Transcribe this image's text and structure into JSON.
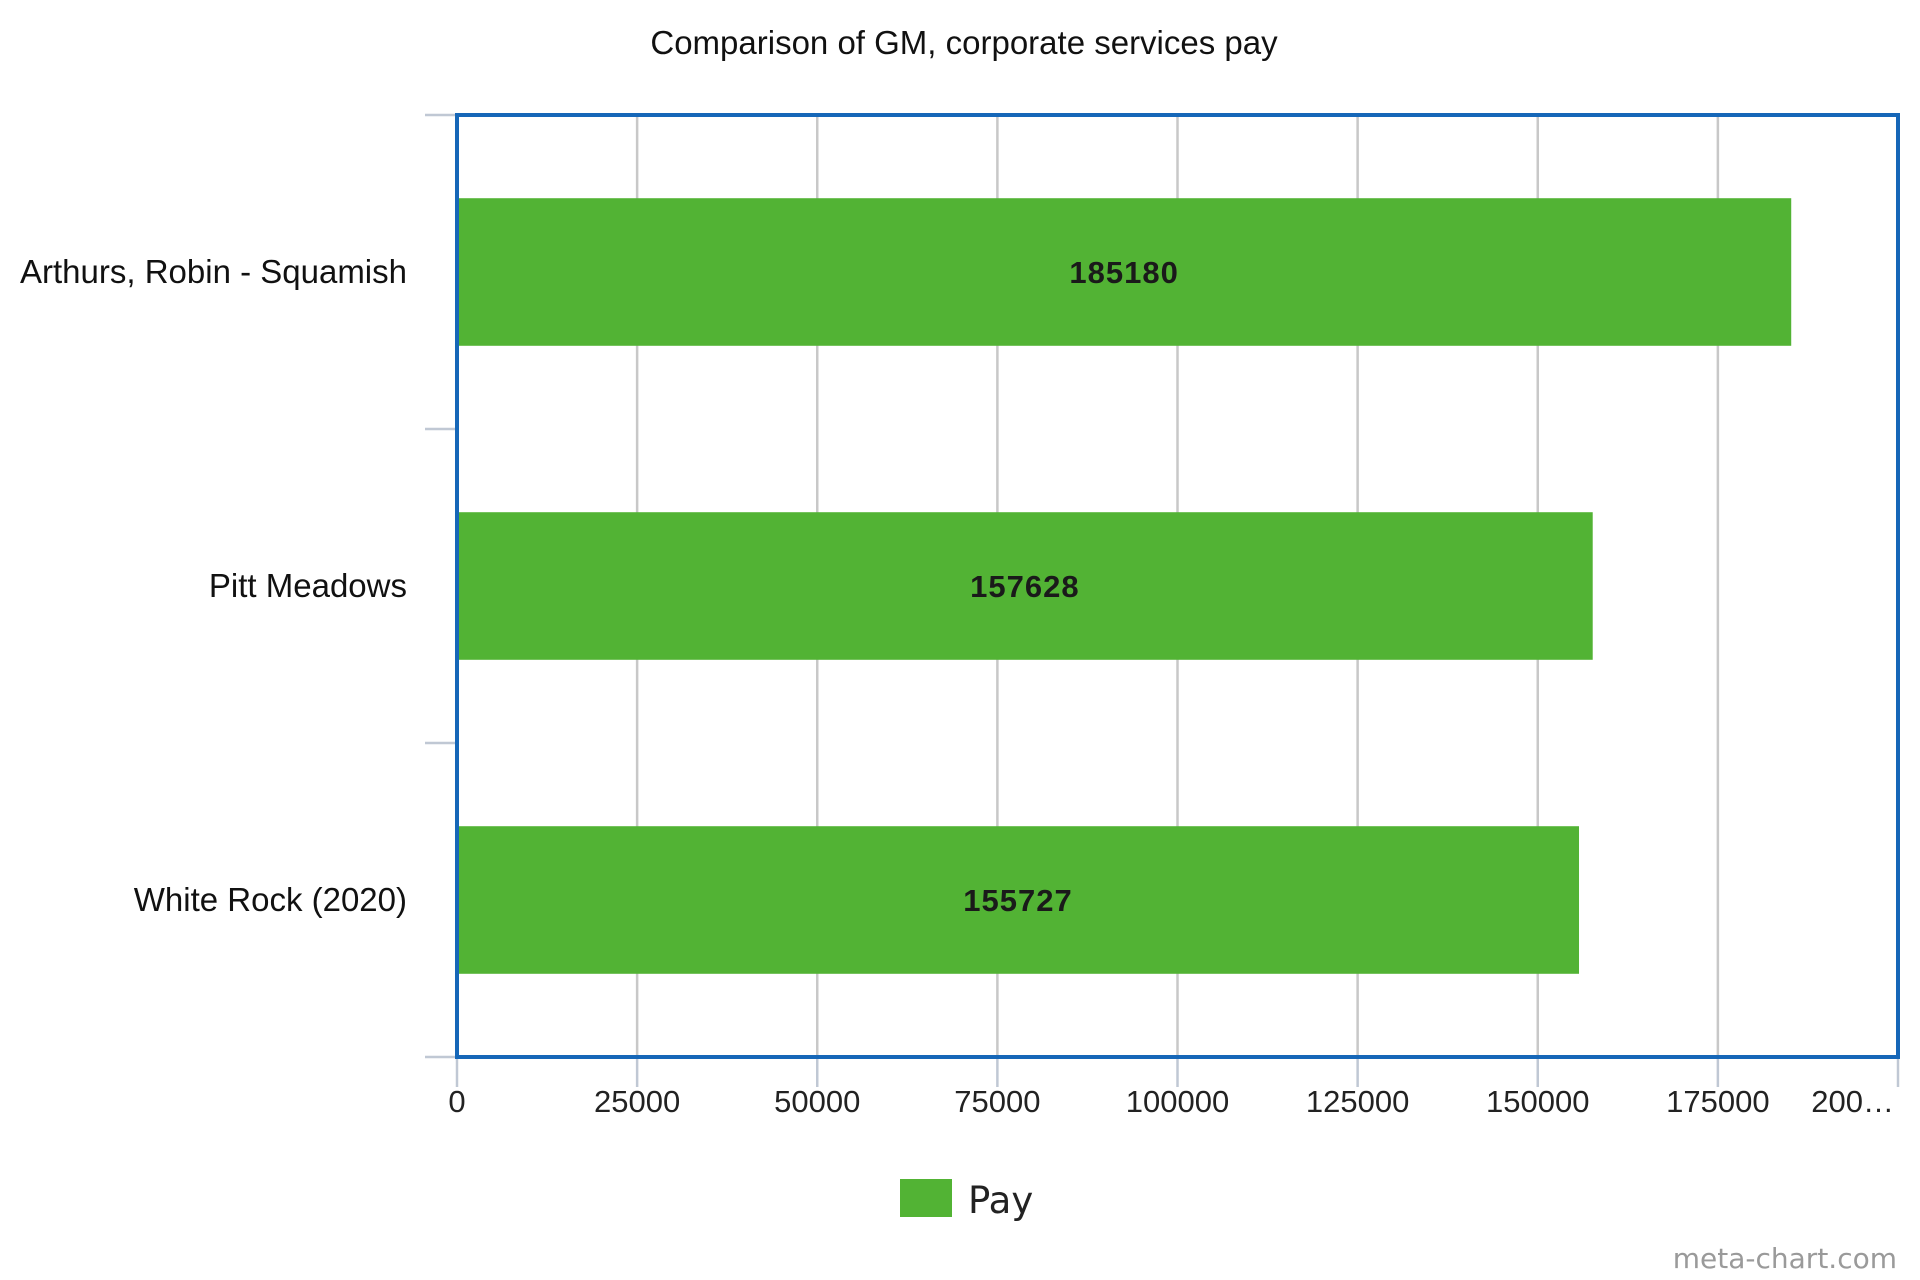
{
  "chart_data": {
    "type": "bar",
    "orientation": "horizontal",
    "title": "Comparison of GM, corporate services pay",
    "categories": [
      "Arthurs, Robin - Squamish",
      "Pitt Meadows",
      "White Rock (2020)"
    ],
    "series": [
      {
        "name": "Pay",
        "values": [
          185180,
          157628,
          155727
        ]
      }
    ],
    "data_labels": [
      "185180",
      "157628",
      "155727"
    ],
    "xlim": [
      0,
      200000
    ],
    "x_ticks": [
      "0",
      "25000",
      "50000",
      "75000",
      "100000",
      "125000",
      "150000",
      "175000",
      "200…"
    ],
    "x_tick_values": [
      0,
      25000,
      50000,
      75000,
      100000,
      125000,
      150000,
      175000,
      200000
    ],
    "grid": true,
    "legend": "bottom",
    "watermark": "meta-chart.com",
    "colors": {
      "bar": "#52b334",
      "plot_border": "#1667b8",
      "grid": "#c8c8c8",
      "axis_ticks": "#c0c8d4"
    }
  }
}
